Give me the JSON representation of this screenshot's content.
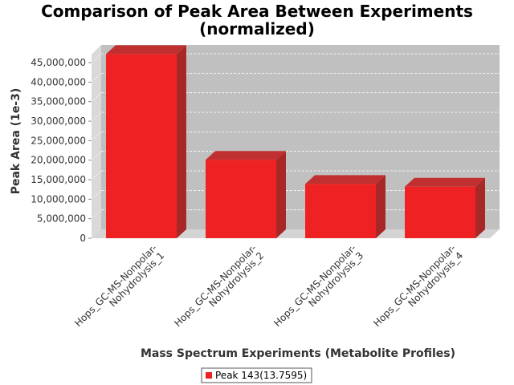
{
  "chart_data": {
    "type": "bar",
    "title": "Comparison of Peak Area Between Experiments",
    "subtitle": "(normalized)",
    "xlabel": "Mass Spectrum Experiments (Metabolite Profiles)",
    "ylabel": "Peak Area (1e-3)",
    "categories": [
      [
        "Hops_GC-MS-Nonpolar-",
        "Nohydrolysis_1"
      ],
      [
        "Hops_GC-MS-Nonpolar-",
        "Nohydrolysis_2"
      ],
      [
        "Hops_GC-MS-Nonpolar-",
        "Nohydrolysis_3"
      ],
      [
        "Hops_GC-MS-Nonpolar-",
        "Nohydrolysis_4"
      ]
    ],
    "series": [
      {
        "name": "Peak 143(13.7595)",
        "color": "#ee2222",
        "values": [
          47200000,
          20100000,
          13900000,
          13200000
        ]
      }
    ],
    "yticks": [
      "0",
      "5,000,000",
      "10,000,000",
      "15,000,000",
      "20,000,000",
      "25,000,000",
      "30,000,000",
      "35,000,000",
      "40,000,000",
      "45,000,000"
    ],
    "ylim": [
      0,
      48500000
    ],
    "grid": true,
    "legend_position": "bottom"
  }
}
